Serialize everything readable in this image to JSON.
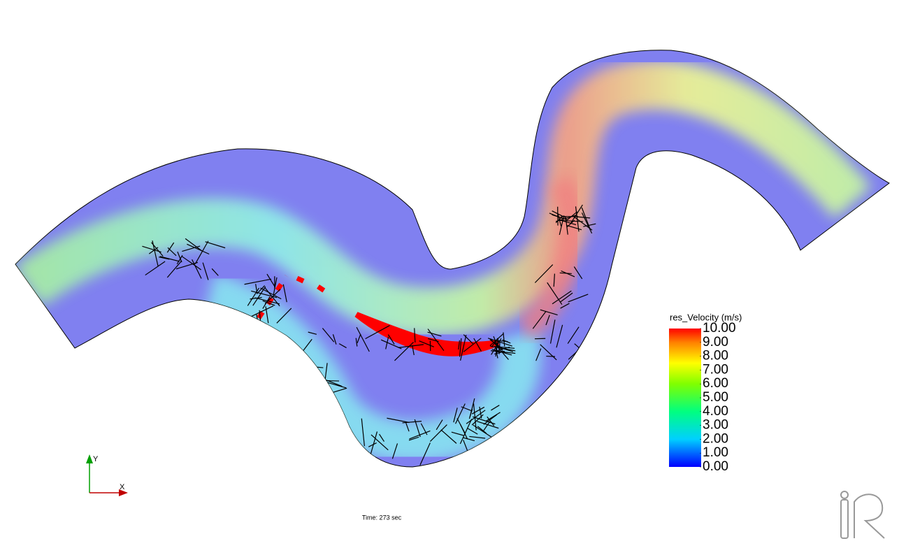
{
  "legend": {
    "title": "res_Velocity (m/s)",
    "range": [
      0,
      10
    ],
    "ticks": [
      {
        "value": 10,
        "label": "10.00"
      },
      {
        "value": 9,
        "label": "9.00"
      },
      {
        "value": 8,
        "label": "8.00"
      },
      {
        "value": 7,
        "label": "7.00"
      },
      {
        "value": 6,
        "label": "6.00"
      },
      {
        "value": 5,
        "label": "5.00"
      },
      {
        "value": 4,
        "label": "4.00"
      },
      {
        "value": 3,
        "label": "3.00"
      },
      {
        "value": 2,
        "label": "2.00"
      },
      {
        "value": 1,
        "label": "1.00"
      },
      {
        "value": 0,
        "label": "0.00"
      }
    ]
  },
  "axes": {
    "y_label": "Y",
    "x_label": "X"
  },
  "time_label": "Time: 273 sec"
}
